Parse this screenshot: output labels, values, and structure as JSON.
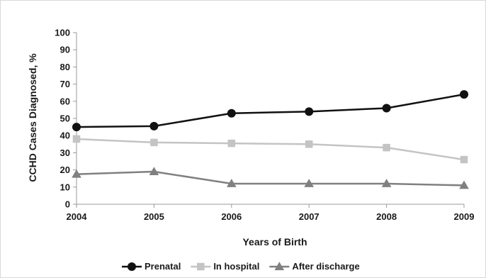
{
  "chart_data": {
    "type": "line",
    "title": "",
    "xlabel": "Years of Birth",
    "ylabel": "CCHD Cases Diagnosed, %",
    "categories": [
      "2004",
      "2005",
      "2006",
      "2007",
      "2008",
      "2009"
    ],
    "y_ticks": [
      "0",
      "10",
      "20",
      "30",
      "40",
      "50",
      "60",
      "70",
      "80",
      "90",
      "100"
    ],
    "ylim": [
      0,
      100
    ],
    "grid": false,
    "legend_position": "bottom",
    "series": [
      {
        "name": "Prenatal",
        "values": [
          45,
          45.5,
          53,
          54,
          56,
          64
        ],
        "color": "#111111",
        "marker": "circle"
      },
      {
        "name": "In hospital",
        "values": [
          38,
          36,
          35.5,
          35,
          33,
          26
        ],
        "color": "#c4c4c4",
        "marker": "square"
      },
      {
        "name": "After discharge",
        "values": [
          17.5,
          19,
          12,
          12,
          12,
          11
        ],
        "color": "#808080",
        "marker": "triangle"
      }
    ]
  }
}
